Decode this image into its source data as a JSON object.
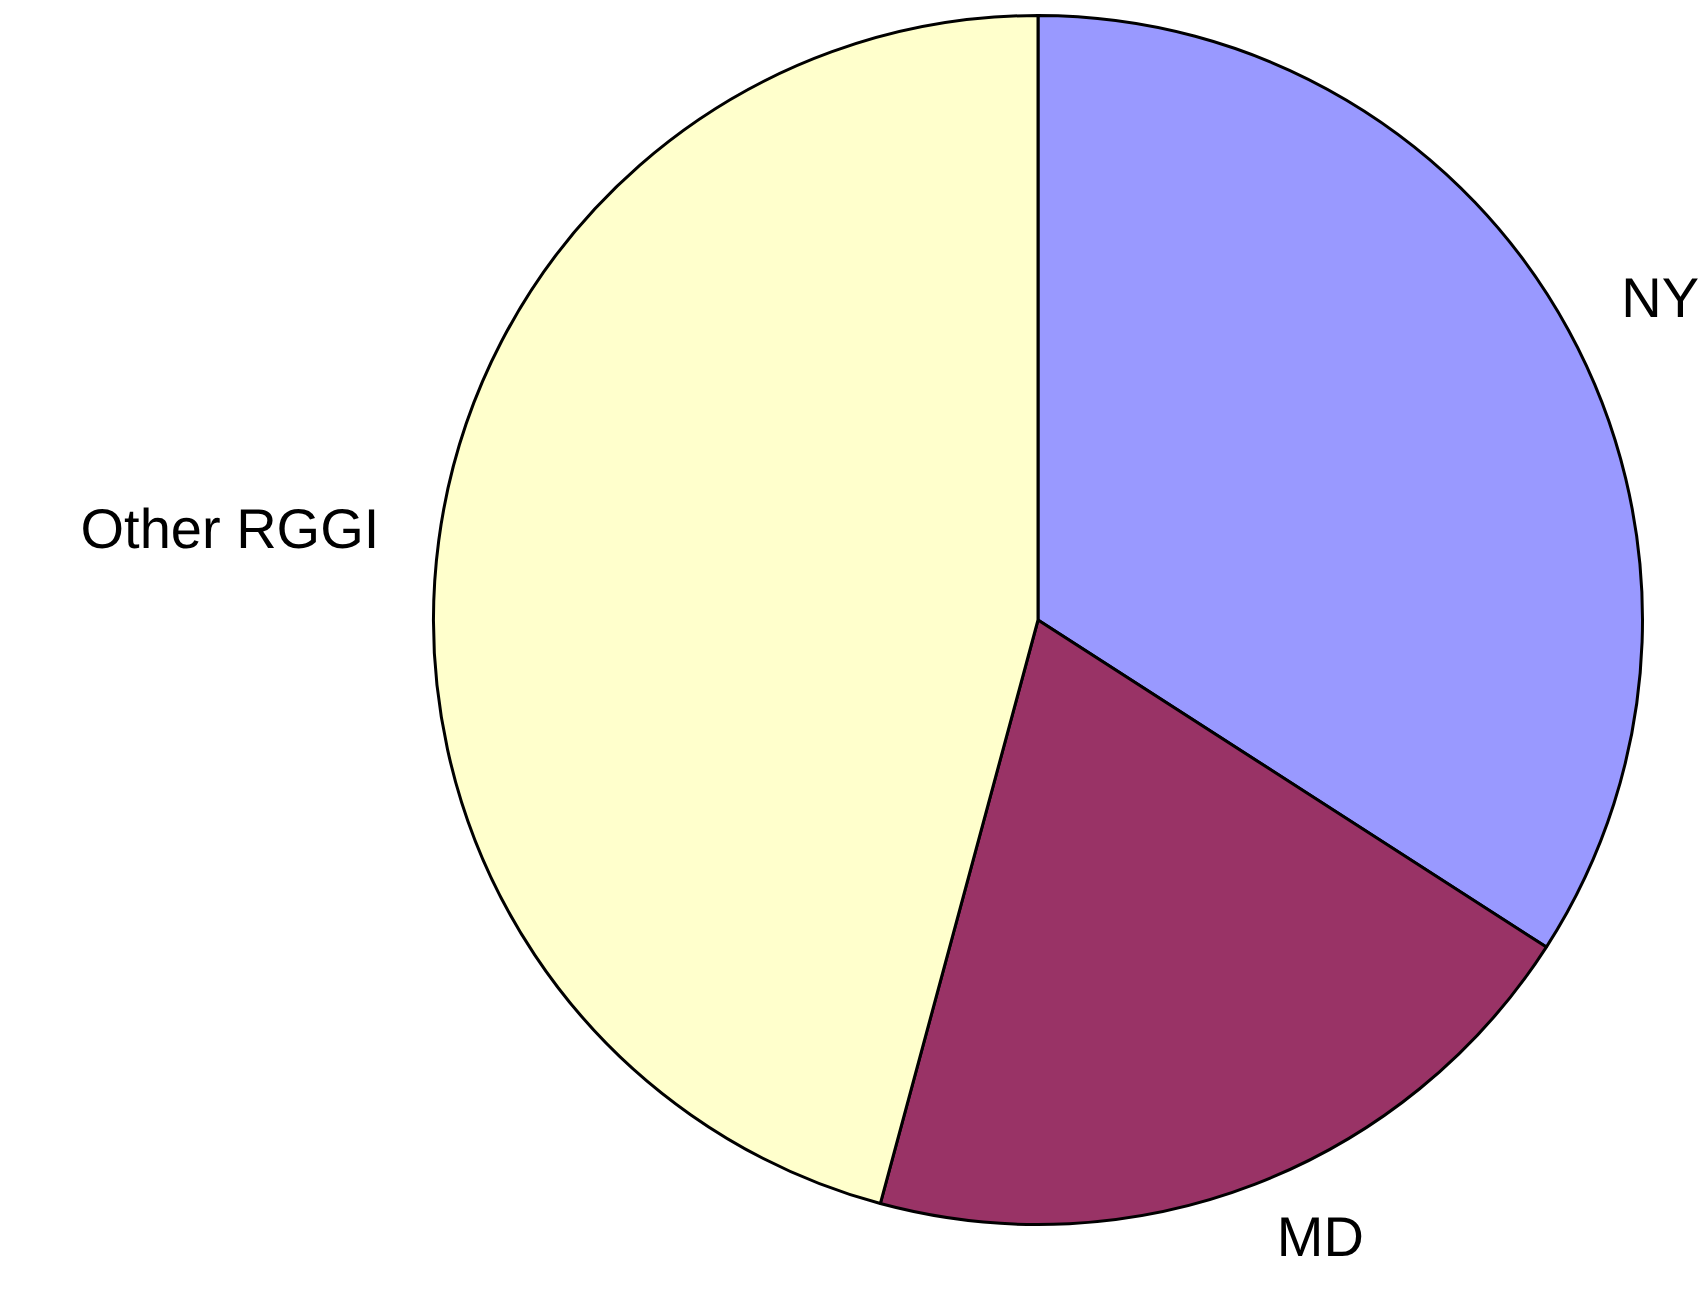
{
  "chart_data": {
    "type": "pie",
    "categories": [
      "NY",
      "MD",
      "Other RGGI"
    ],
    "values": [
      34.1,
      20.1,
      45.8
    ],
    "colors": [
      "#9999ff",
      "#993366",
      "#ffffcc"
    ]
  }
}
